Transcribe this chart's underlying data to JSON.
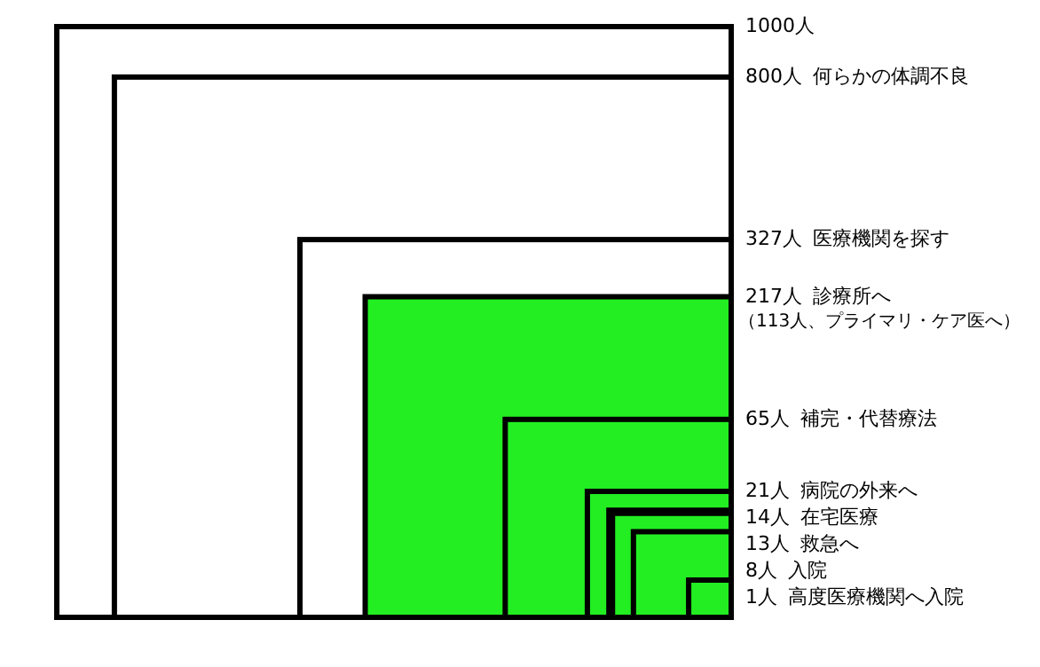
{
  "chart_data": {
    "type": "other",
    "categories": [
      null,
      "何らかの体調不良",
      "医療機関を探す",
      "診療所へ",
      "補完・代替療法",
      "病院の外来へ",
      "在宅医療",
      "救急へ",
      "入院",
      "高度医療機関へ入院"
    ],
    "values": [
      1000,
      800,
      327,
      217,
      65,
      21,
      14,
      13,
      8,
      1
    ],
    "value_labels": [
      "1000人",
      "800人",
      "327人",
      "217人",
      "65人",
      "21人",
      "14人",
      "13人",
      "8人",
      "1人"
    ],
    "colors": [
      "#ffffff",
      "#ffffff",
      "#ffffff",
      "#22ee22",
      "#22ee22",
      "#22ee22",
      "#22ee22",
      "#22ee22",
      "#22ee22",
      "#22ee22"
    ],
    "annotations": [
      "（113人、プライマリ・ケア医へ）"
    ]
  }
}
